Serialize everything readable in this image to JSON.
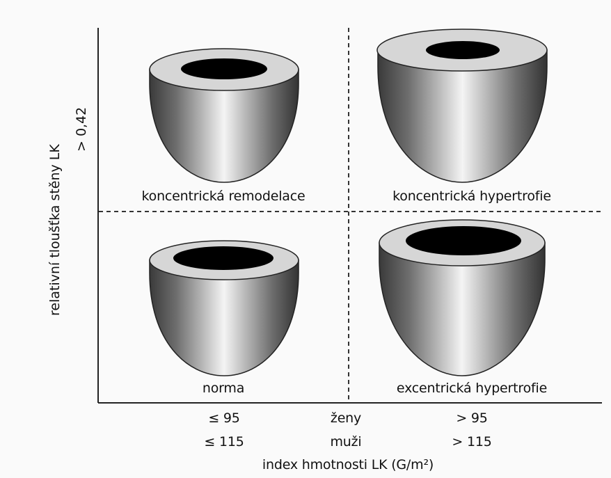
{
  "axes": {
    "y_label": "relativní tloušťka stěny LK",
    "y_threshold": "> 0,42",
    "x_label": "index hmotnosti LK (G/m²)",
    "x_rows": [
      {
        "group": "ženy",
        "low": "≤ 95",
        "high": "> 95"
      },
      {
        "group": "muži",
        "low": "≤ 115",
        "high": "> 115"
      }
    ]
  },
  "quadrants": {
    "top_left": "koncentrická remodelace",
    "top_right": "koncentrická hypertrofie",
    "bottom_left": "norma",
    "bottom_right": "excentrická hypertrofie"
  }
}
